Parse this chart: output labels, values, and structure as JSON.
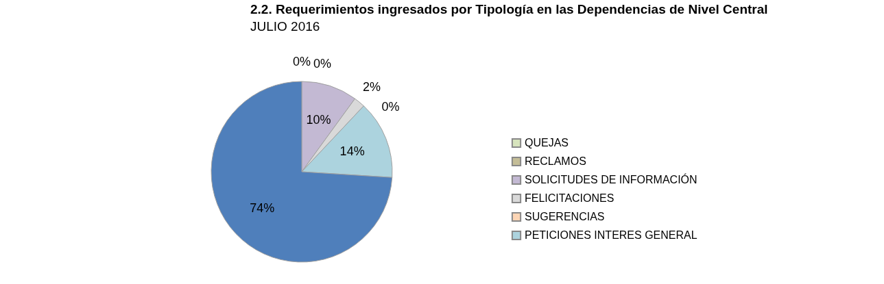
{
  "chart_data": {
    "type": "pie",
    "title": "2.2. Requerimientos ingresados por Tipología en las Dependencias de Nivel Central",
    "subtitle": "JULIO  2016",
    "categories": [
      "QUEJAS",
      "RECLAMOS",
      "SOLICITUDES DE INFORMACIÓN",
      "FELICITACIONES",
      "SUGERENCIAS",
      "PETICIONES INTERES GENERAL",
      null
    ],
    "values": [
      0,
      0,
      10,
      2,
      0,
      14,
      74
    ],
    "value_labels": [
      "0%",
      "0%",
      "10%",
      "2%",
      "0%",
      "14%",
      "74%"
    ],
    "colors": [
      "#d7e4bd",
      "#c4bd97",
      "#c3b9d3",
      "#d9d9d9",
      "#fcd5b5",
      "#acd3de",
      "#4f7fbb"
    ],
    "legend": "right"
  }
}
